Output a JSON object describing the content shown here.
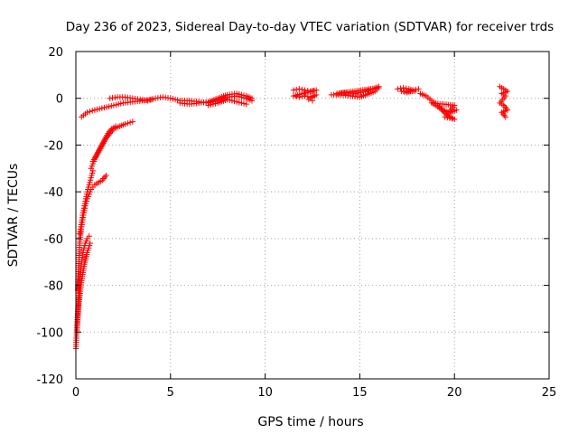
{
  "chart_data": {
    "type": "scatter",
    "title": "Day 236 of 2023, Sidereal Day-to-day VTEC variation (SDTVAR) for receiver trds",
    "xlabel": "GPS time / hours",
    "ylabel": "SDTVAR / TECUs",
    "xlim": [
      0,
      25
    ],
    "ylim": [
      -120,
      20
    ],
    "xticks": [
      0,
      5,
      10,
      15,
      20,
      25
    ],
    "yticks": [
      -120,
      -100,
      -80,
      -60,
      -40,
      -20,
      0,
      20
    ],
    "grid": true,
    "marker": "+",
    "color": "#ff0000",
    "series": [
      {
        "name": "SDTVAR",
        "segments": [
          {
            "x": [
              0.0,
              0.1,
              0.2,
              0.3,
              0.4,
              0.5,
              0.6,
              0.7
            ],
            "y": [
              -107,
              -92,
              -78,
              -70,
              -65,
              -62,
              -60,
              -59
            ]
          },
          {
            "x": [
              0.05,
              0.15,
              0.3,
              0.45,
              0.6,
              0.75
            ],
            "y": [
              -100,
              -88,
              -78,
              -71,
              -66,
              -62
            ]
          },
          {
            "x": [
              0.1,
              0.2,
              0.3,
              0.4,
              0.5,
              0.6,
              0.7,
              0.8,
              0.9,
              1.0,
              1.2,
              1.4,
              1.6
            ],
            "y": [
              -82,
              -62,
              -55,
              -50,
              -46,
              -43,
              -41,
              -39,
              -38,
              -37,
              -36,
              -35,
              -33
            ]
          },
          {
            "x": [
              0.2,
              0.3,
              0.4,
              0.5,
              0.6,
              0.7,
              0.8,
              0.9
            ],
            "y": [
              -58,
              -53,
              -48,
              -44,
              -40,
              -37,
              -34,
              -31
            ]
          },
          {
            "x": [
              0.8,
              0.9,
              1.0,
              1.2,
              1.4,
              1.6,
              1.8,
              2.0,
              2.3,
              2.6,
              3.0
            ],
            "y": [
              -30,
              -28,
              -26,
              -23,
              -20,
              -17,
              -15,
              -13,
              -12,
              -11,
              -10
            ]
          },
          {
            "x": [
              0.9,
              1.1,
              1.3,
              1.5,
              1.7,
              1.9,
              2.1
            ],
            "y": [
              -27,
              -24,
              -21,
              -18,
              -15,
              -13,
              -12
            ]
          },
          {
            "x": [
              0.3,
              0.6,
              1.0,
              1.5,
              2.0,
              2.5,
              3.0,
              3.5,
              4.0
            ],
            "y": [
              -8,
              -6,
              -5,
              -4,
              -3,
              -2,
              -1.5,
              -1,
              -0.5
            ]
          },
          {
            "x": [
              1.8,
              2.2,
              2.6,
              3.0,
              3.4,
              3.8,
              4.2,
              4.6,
              5.0,
              5.5,
              6.0,
              6.5,
              7.0,
              7.5,
              8.0,
              8.5,
              9.0,
              9.3
            ],
            "y": [
              0,
              0.5,
              0.5,
              0,
              -0.5,
              -1,
              0,
              0.5,
              0,
              -1,
              -1,
              -1.5,
              -2,
              -1,
              0.5,
              1,
              0,
              -1
            ]
          },
          {
            "x": [
              5.5,
              6.0,
              6.5,
              7.0,
              7.5,
              8.0,
              8.5,
              9.0,
              9.3
            ],
            "y": [
              -2,
              -2.5,
              -2,
              -1.5,
              0,
              1.5,
              2,
              1,
              0
            ]
          },
          {
            "x": [
              7.0,
              7.5,
              8.0,
              8.5,
              9.0
            ],
            "y": [
              -3,
              -2,
              -0.5,
              -1.5,
              -2.5
            ]
          },
          {
            "x": [
              11.5,
              11.8,
              12.1,
              12.4,
              12.7,
              11.5,
              11.8,
              12.1,
              12.4,
              12.7,
              12.3,
              12.5
            ],
            "y": [
              3.5,
              4,
              3.5,
              3,
              3.5,
              1,
              0.5,
              1,
              0.5,
              1.5,
              -0.5,
              -1
            ]
          },
          {
            "x": [
              13.5,
              14.0,
              14.5,
              15.0,
              15.5,
              15.8,
              16.0,
              13.8,
              14.3,
              14.8,
              15.3,
              15.7,
              16.0
            ],
            "y": [
              1.5,
              1.5,
              1,
              0.5,
              2,
              3,
              4.5,
              2,
              2.5,
              2,
              3,
              4,
              5
            ]
          },
          {
            "x": [
              17.0,
              17.3,
              17.6,
              17.9,
              17.2,
              17.5,
              17.8,
              18.1
            ],
            "y": [
              4,
              4.5,
              4,
              3,
              3,
              2.5,
              3.5,
              4
            ]
          },
          {
            "x": [
              18.2,
              18.5,
              18.8,
              19.1,
              19.4,
              19.7,
              20.0,
              18.8,
              19.2,
              19.6,
              20.0,
              19.5,
              19.8,
              20.1
            ],
            "y": [
              2,
              1,
              -1,
              -3,
              -5,
              -6,
              -3,
              -2,
              -4,
              -7,
              -9,
              -8,
              -6,
              -5
            ]
          },
          {
            "x": [
              22.4,
              22.6,
              22.8,
              22.5,
              22.7,
              22.4,
              22.6,
              22.8,
              22.5,
              22.7
            ],
            "y": [
              5,
              4,
              3,
              2,
              1,
              -2,
              -3,
              -5,
              -6,
              -8
            ]
          }
        ]
      }
    ]
  }
}
